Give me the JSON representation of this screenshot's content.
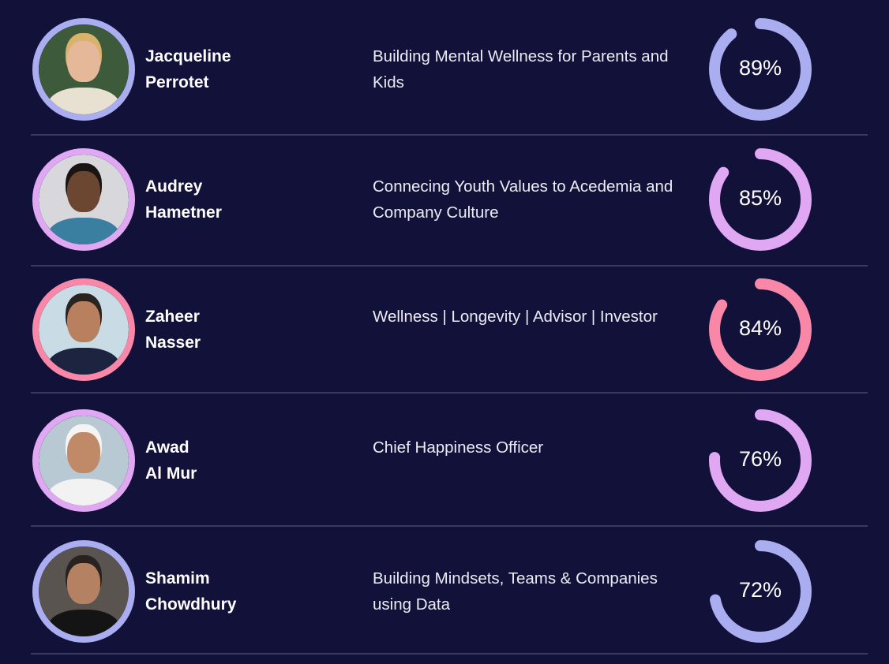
{
  "people": [
    {
      "first": "Jacqueline",
      "last": "Perrotet",
      "description": "Building Mental Wellness for Parents and Kids",
      "percent": 89,
      "percent_label": "89%",
      "color": "#aaaef0",
      "photo": {
        "bg": "#3d5a3a",
        "skin": "#e6b89a",
        "hair": "#d9b36c",
        "shirt": "#e8e0d0"
      }
    },
    {
      "first": "Audrey",
      "last": "Hametner",
      "description": "Connecing Youth Values to Acedemia and Company Culture",
      "percent": 85,
      "percent_label": "85%",
      "color": "#e0a8f2",
      "photo": {
        "bg": "#d8d8dc",
        "skin": "#6b4631",
        "hair": "#1a1412",
        "shirt": "#3a7fa0"
      }
    },
    {
      "first": "Zaheer",
      "last": "Nasser",
      "description": "Wellness | Longevity | Advisor | Investor",
      "percent": 84,
      "percent_label": "84%",
      "color": "#f887a8",
      "photo": {
        "bg": "#c9dce6",
        "skin": "#b8805e",
        "hair": "#2a2420",
        "shirt": "#1c2440"
      }
    },
    {
      "first": "Awad",
      "last": "Al Mur",
      "description": "Chief Happiness Officer",
      "percent": 76,
      "percent_label": "76%",
      "color": "#e0a8f2",
      "photo": {
        "bg": "#b9c9d4",
        "skin": "#c08a68",
        "hair": "#f4f4f4",
        "shirt": "#f2f2f2"
      }
    },
    {
      "first": "Shamim",
      "last": "Chowdhury",
      "description": "Building Mindsets, Teams & Companies using Data",
      "percent": 72,
      "percent_label": "72%",
      "color": "#aaaef0",
      "photo": {
        "bg": "#5a5450",
        "skin": "#b48262",
        "hair": "#2a2220",
        "shirt": "#141414"
      }
    }
  ]
}
